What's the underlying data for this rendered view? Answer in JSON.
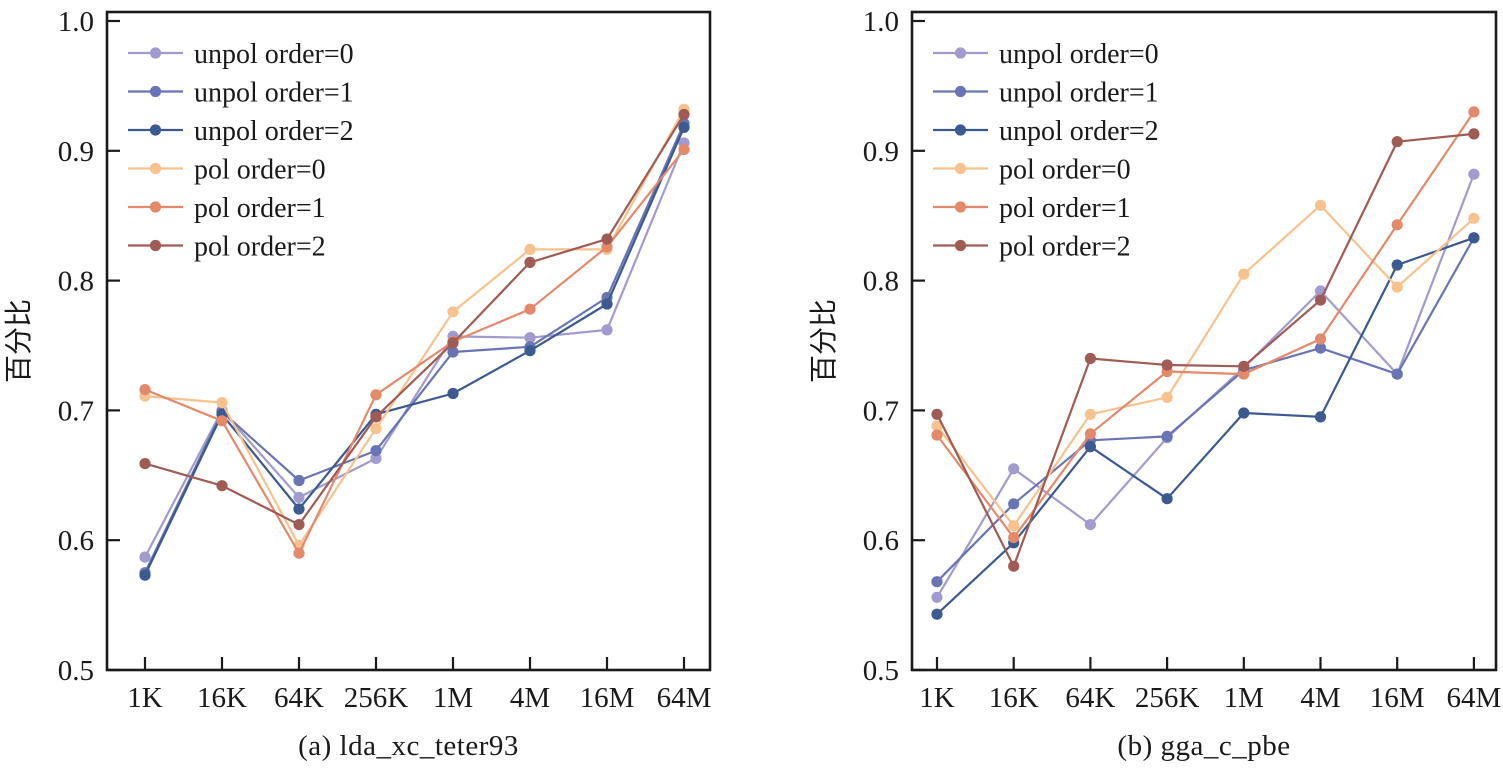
{
  "figure": {
    "background": "#ffffff",
    "axis_color": "#1a1a1a",
    "text_color": "#1a1a1a"
  },
  "chart_data": [
    {
      "type": "line",
      "title": "(a) lda_xc_teter93",
      "xlabel": "",
      "ylabel": "百分比",
      "ylim": [
        0.5,
        1.0
      ],
      "yticks": [
        0.5,
        0.6,
        0.7,
        0.8,
        0.9,
        1.0
      ],
      "grid": false,
      "legend_position": "upper-left",
      "categories": [
        "1K",
        "16K",
        "64K",
        "256K",
        "1M",
        "4M",
        "16M",
        "64M"
      ],
      "series": [
        {
          "name": "unpol order=0",
          "color": "#a29bd0",
          "values": [
            0.587,
            0.7,
            0.633,
            0.663,
            0.757,
            0.756,
            0.762,
            0.906
          ]
        },
        {
          "name": "unpol order=1",
          "color": "#6974b5",
          "values": [
            0.575,
            0.699,
            0.646,
            0.669,
            0.745,
            0.749,
            0.787,
            0.921
          ]
        },
        {
          "name": "unpol order=2",
          "color": "#3c5a90",
          "values": [
            0.573,
            0.697,
            0.624,
            0.697,
            0.713,
            0.746,
            0.782,
            0.918
          ]
        },
        {
          "name": "pol order=0",
          "color": "#f7c28d",
          "values": [
            0.711,
            0.706,
            0.596,
            0.686,
            0.776,
            0.824,
            0.824,
            0.932
          ]
        },
        {
          "name": "pol order=1",
          "color": "#e5896b",
          "values": [
            0.716,
            0.692,
            0.59,
            0.712,
            0.753,
            0.778,
            0.826,
            0.901
          ]
        },
        {
          "name": "pol order=2",
          "color": "#a05b55",
          "values": [
            0.659,
            0.642,
            0.612,
            0.695,
            0.752,
            0.814,
            0.832,
            0.928
          ]
        }
      ]
    },
    {
      "type": "line",
      "title": "(b) gga_c_pbe",
      "xlabel": "",
      "ylabel": "百分比",
      "ylim": [
        0.5,
        1.0
      ],
      "yticks": [
        0.5,
        0.6,
        0.7,
        0.8,
        0.9,
        1.0
      ],
      "grid": false,
      "legend_position": "upper-left",
      "categories": [
        "1K",
        "16K",
        "64K",
        "256K",
        "1M",
        "4M",
        "16M",
        "64M"
      ],
      "series": [
        {
          "name": "unpol order=0",
          "color": "#a29bd0",
          "values": [
            0.556,
            0.655,
            0.612,
            0.679,
            0.733,
            0.792,
            0.728,
            0.882
          ]
        },
        {
          "name": "unpol order=1",
          "color": "#6974b5",
          "values": [
            0.568,
            0.628,
            0.677,
            0.68,
            0.731,
            0.748,
            0.728,
            0.833
          ]
        },
        {
          "name": "unpol order=2",
          "color": "#3c5a90",
          "values": [
            0.543,
            0.598,
            0.672,
            0.632,
            0.698,
            0.695,
            0.812,
            0.833
          ]
        },
        {
          "name": "pol order=0",
          "color": "#f7c28d",
          "values": [
            0.688,
            0.611,
            0.697,
            0.71,
            0.805,
            0.858,
            0.795,
            0.848
          ]
        },
        {
          "name": "pol order=1",
          "color": "#e5896b",
          "values": [
            0.681,
            0.602,
            0.682,
            0.73,
            0.728,
            0.755,
            0.843,
            0.93
          ]
        },
        {
          "name": "pol order=2",
          "color": "#a05b55",
          "values": [
            0.697,
            0.58,
            0.74,
            0.735,
            0.734,
            0.785,
            0.907,
            0.913
          ]
        }
      ]
    }
  ]
}
